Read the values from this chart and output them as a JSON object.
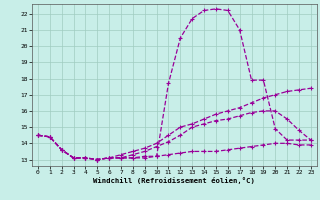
{
  "xlabel": "Windchill (Refroidissement éolien,°C)",
  "bg_color": "#c8eee8",
  "grid_color": "#a0ccc0",
  "line_color": "#990099",
  "ylim": [
    12.6,
    22.6
  ],
  "xlim": [
    -0.5,
    23.5
  ],
  "yticks": [
    13,
    14,
    15,
    16,
    17,
    18,
    19,
    20,
    21,
    22
  ],
  "xticks": [
    0,
    1,
    2,
    3,
    4,
    5,
    6,
    7,
    8,
    9,
    10,
    11,
    12,
    13,
    14,
    15,
    16,
    17,
    18,
    19,
    20,
    21,
    22,
    23
  ],
  "line_high": [
    14.5,
    14.4,
    13.6,
    13.1,
    13.1,
    13.0,
    13.1,
    13.1,
    13.1,
    13.1,
    13.2,
    17.7,
    20.5,
    21.7,
    22.2,
    22.3,
    22.2,
    21.0,
    17.9,
    17.9,
    14.9,
    14.2,
    14.2,
    14.2
  ],
  "line_mid_hi": [
    14.5,
    14.4,
    13.6,
    13.1,
    13.1,
    13.0,
    13.1,
    13.3,
    13.5,
    13.7,
    14.0,
    14.5,
    15.0,
    15.2,
    15.5,
    15.8,
    16.0,
    16.2,
    16.5,
    16.8,
    17.0,
    17.2,
    17.3,
    17.4
  ],
  "line_mid_lo": [
    14.5,
    14.4,
    13.6,
    13.1,
    13.1,
    13.0,
    13.1,
    13.1,
    13.3,
    13.5,
    13.8,
    14.1,
    14.5,
    15.0,
    15.2,
    15.4,
    15.5,
    15.7,
    15.9,
    16.0,
    16.0,
    15.5,
    14.8,
    14.2
  ],
  "line_low": [
    14.5,
    14.4,
    13.6,
    13.1,
    13.1,
    13.0,
    13.1,
    13.1,
    13.1,
    13.2,
    13.2,
    13.3,
    13.4,
    13.5,
    13.5,
    13.5,
    13.6,
    13.7,
    13.8,
    13.9,
    14.0,
    14.0,
    13.9,
    13.9
  ]
}
